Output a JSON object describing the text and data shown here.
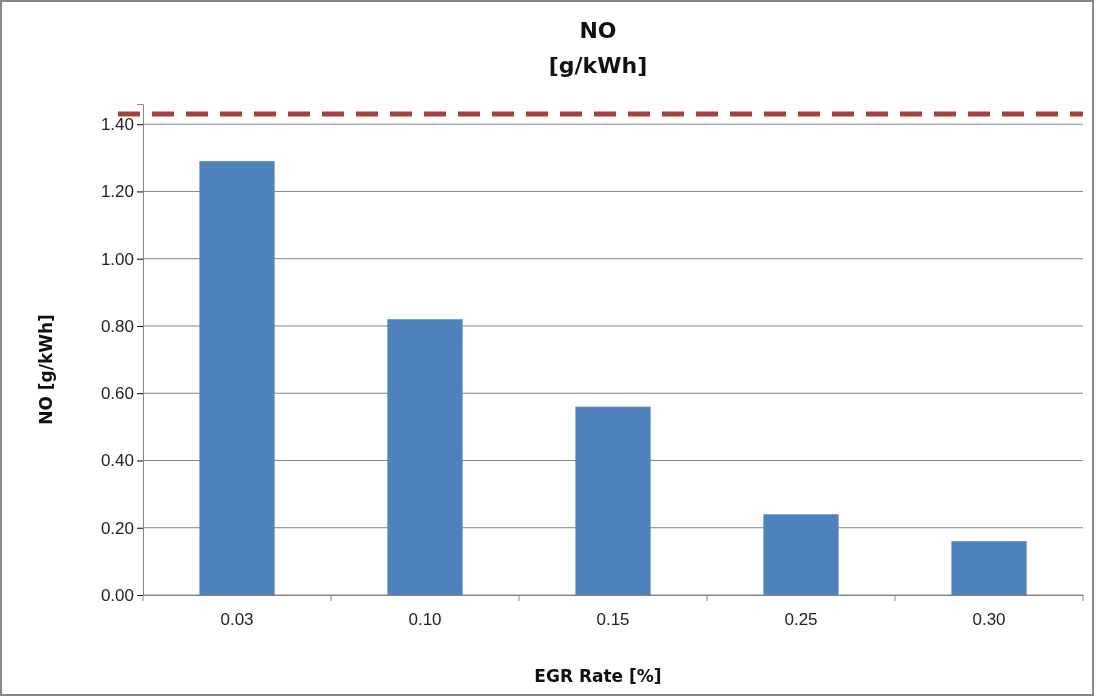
{
  "chart_data": {
    "type": "bar",
    "title": "NO\n[g/kWh]",
    "xlabel": "EGR Rate [%]",
    "ylabel": "NO [g/kWh]",
    "categories": [
      "0.03",
      "0.10",
      "0.15",
      "0.25",
      "0.30"
    ],
    "values": [
      1.29,
      0.82,
      0.56,
      0.24,
      0.16
    ],
    "color": "#4f81bd",
    "ylim": [
      0,
      1.46
    ],
    "yticks": [
      {
        "value": 0,
        "label": "0.00"
      },
      {
        "value": 0.2,
        "label": "0.20"
      },
      {
        "value": 0.4,
        "label": "0.40"
      },
      {
        "value": 0.6,
        "label": "0.60"
      },
      {
        "value": 0.8,
        "label": "0.80"
      },
      {
        "value": 1.0,
        "label": "1.00"
      },
      {
        "value": 1.2,
        "label": "1.20"
      },
      {
        "value": 1.4,
        "label": "1.40"
      }
    ],
    "grid": "y",
    "ref_lines": [
      {
        "axis": "y",
        "value": 1.43,
        "color": "#a5403d",
        "line_style": "dashed"
      }
    ]
  }
}
